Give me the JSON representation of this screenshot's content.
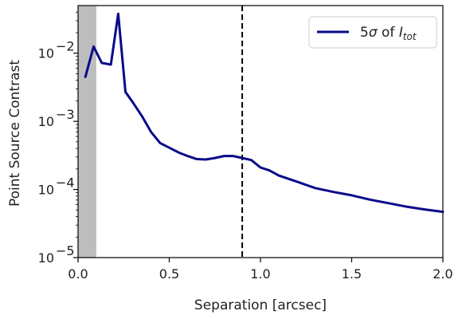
{
  "chart_data": {
    "type": "line",
    "xlabel": "Separation [arcsec]",
    "ylabel": "Point Source Contrast",
    "xlim": [
      0.0,
      2.0
    ],
    "ylim": [
      1e-05,
      0.05
    ],
    "yscale": "log",
    "grid": false,
    "legend_position": "top-right",
    "x_ticks": [
      {
        "value": 0.0,
        "label": "0.0"
      },
      {
        "value": 0.5,
        "label": "0.5"
      },
      {
        "value": 1.0,
        "label": "1.0"
      },
      {
        "value": 1.5,
        "label": "1.5"
      },
      {
        "value": 2.0,
        "label": "2.0"
      }
    ],
    "y_ticks": [
      {
        "value": 1e-05,
        "base": "10",
        "exp": "−5"
      },
      {
        "value": 0.0001,
        "base": "10",
        "exp": "−4"
      },
      {
        "value": 0.001,
        "base": "10",
        "exp": "−3"
      },
      {
        "value": 0.01,
        "base": "10",
        "exp": "−2"
      }
    ],
    "shaded_region": {
      "x": [
        0.0,
        0.1
      ],
      "color": "#bdbdbd"
    },
    "vertical_line": {
      "x": 0.9,
      "style": "dashed",
      "color": "#000000"
    },
    "series": [
      {
        "name": "5σ of I_tot",
        "legend": {
          "prefix": "5",
          "sigma": "σ",
          "middle": " of ",
          "I": "I",
          "sub": "tot"
        },
        "color": "#0a0a8a",
        "x": [
          0.04,
          0.085,
          0.13,
          0.18,
          0.22,
          0.26,
          0.3,
          0.35,
          0.4,
          0.45,
          0.5,
          0.55,
          0.6,
          0.65,
          0.7,
          0.75,
          0.8,
          0.85,
          0.9,
          0.95,
          1.0,
          1.05,
          1.1,
          1.2,
          1.3,
          1.4,
          1.5,
          1.6,
          1.7,
          1.8,
          1.9,
          2.0
        ],
        "y": [
          0.0045,
          0.0125,
          0.0072,
          0.0068,
          0.038,
          0.0027,
          0.0019,
          0.0012,
          0.0007,
          0.00048,
          0.00041,
          0.00035,
          0.00031,
          0.00028,
          0.000275,
          0.00029,
          0.00031,
          0.00031,
          0.00029,
          0.00027,
          0.00021,
          0.00019,
          0.00016,
          0.00013,
          0.000105,
          9.2e-05,
          8.2e-05,
          7.1e-05,
          6.3e-05,
          5.6e-05,
          5.1e-05,
          4.7e-05
        ]
      }
    ]
  }
}
